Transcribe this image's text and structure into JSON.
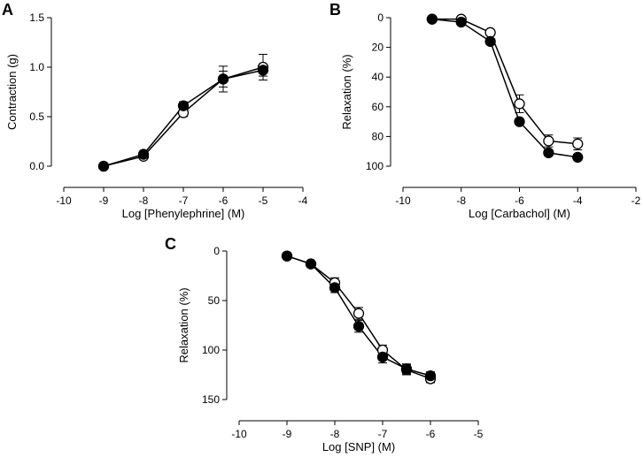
{
  "colors": {
    "axis": "#000000",
    "filled_marker": "#000000",
    "open_marker": "#ffffff"
  },
  "chart_data": [
    {
      "type": "line",
      "panel": "A",
      "xlabel": "Log [Phenylephrine] (M)",
      "ylabel": "Contraction (g)",
      "xlim": [
        -10,
        -4
      ],
      "ylim": [
        0,
        1.5
      ],
      "y_inverted": false,
      "x_ticks": [
        -10,
        -9,
        -8,
        -7,
        -6,
        -5,
        -4
      ],
      "y_ticks": [
        0,
        0.5,
        1.0,
        1.5
      ],
      "y_tick_labels": [
        "0.0",
        "0.5",
        "1.0",
        "1.5"
      ],
      "series": [
        {
          "name": "open",
          "marker": "open-circle",
          "x": [
            -9,
            -8,
            -7,
            -6,
            -5
          ],
          "y": [
            0.0,
            0.1,
            0.54,
            0.88,
            1.0
          ],
          "err": [
            0.01,
            0.02,
            0.04,
            0.08,
            0.13
          ]
        },
        {
          "name": "filled",
          "marker": "filled-circle",
          "x": [
            -9,
            -8,
            -7,
            -6,
            -5
          ],
          "y": [
            0.0,
            0.12,
            0.61,
            0.88,
            0.97
          ],
          "err": [
            0.01,
            0.03,
            0.04,
            0.13,
            0.06
          ]
        }
      ]
    },
    {
      "type": "line",
      "panel": "B",
      "xlabel": "Log [Carbachol] (M)",
      "ylabel": "Relaxation (%)",
      "xlim": [
        -10,
        -2
      ],
      "ylim": [
        0,
        100
      ],
      "y_inverted": true,
      "x_ticks": [
        -10,
        -8,
        -6,
        -4,
        -2
      ],
      "y_ticks": [
        0,
        20,
        40,
        60,
        80,
        100
      ],
      "y_tick_labels": [
        "0",
        "20",
        "40",
        "60",
        "80",
        "100"
      ],
      "series": [
        {
          "name": "open",
          "marker": "open-circle",
          "x": [
            -9,
            -8,
            -7,
            -6,
            -5,
            -4
          ],
          "y": [
            1,
            1,
            10,
            58,
            83,
            85
          ],
          "err": [
            0.5,
            0.5,
            2,
            6,
            4,
            4
          ]
        },
        {
          "name": "filled",
          "marker": "filled-circle",
          "x": [
            -9,
            -8,
            -7,
            -6,
            -5,
            -4
          ],
          "y": [
            1,
            3,
            16,
            70,
            91,
            94
          ],
          "err": [
            0.5,
            1,
            2,
            2,
            2,
            2
          ]
        }
      ]
    },
    {
      "type": "line",
      "panel": "C",
      "xlabel": "Log [SNP] (M)",
      "ylabel": "Relaxation (%)",
      "xlim": [
        -10,
        -5
      ],
      "ylim": [
        0,
        150
      ],
      "y_inverted": true,
      "x_ticks": [
        -10,
        -9,
        -8,
        -7,
        -6,
        -5
      ],
      "y_ticks": [
        0,
        50,
        100,
        150
      ],
      "y_tick_labels": [
        "0",
        "50",
        "100",
        "150"
      ],
      "series": [
        {
          "name": "open",
          "marker": "open-circle",
          "x": [
            -9,
            -8.5,
            -8,
            -7.5,
            -7,
            -6.5,
            -6
          ],
          "y": [
            5,
            13,
            32,
            63,
            100,
            120,
            129
          ],
          "err": [
            1,
            2,
            5,
            6,
            5,
            5,
            4
          ]
        },
        {
          "name": "filled",
          "marker": "filled-circle",
          "x": [
            -9,
            -8.5,
            -8,
            -7.5,
            -7,
            -6.5,
            -6
          ],
          "y": [
            5,
            13,
            37,
            76,
            107,
            119,
            126
          ],
          "err": [
            1,
            2,
            5,
            6,
            6,
            5,
            4
          ]
        }
      ]
    }
  ]
}
